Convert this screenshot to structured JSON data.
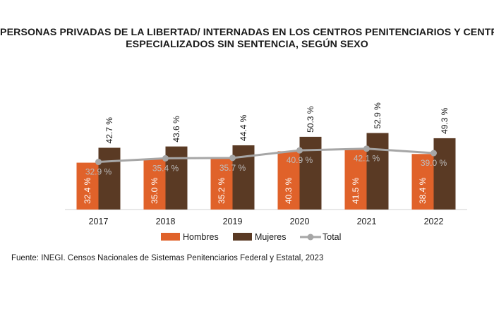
{
  "chart_data": {
    "type": "bar",
    "title_lines": [
      "Personas privadas de la libertad/ internadas en los centros penitenciarios y centros",
      "especializados sin sentencia, según sexo"
    ],
    "categories": [
      "2017",
      "2018",
      "2019",
      "2020",
      "2021",
      "2022"
    ],
    "series": [
      {
        "name": "Hombres",
        "values": [
          32.4,
          35.0,
          35.2,
          40.3,
          41.5,
          38.4
        ],
        "labels": [
          "32.4 %",
          "35.0 %",
          "35.2 %",
          "40.3 %",
          "41.5 %",
          "38.4 %"
        ],
        "color": "#e0622a"
      },
      {
        "name": "Mujeres",
        "values": [
          42.7,
          43.6,
          44.4,
          50.3,
          52.9,
          49.3
        ],
        "labels": [
          "42.7 %",
          "43.6 %",
          "44.4 %",
          "50.3 %",
          "52.9 %",
          "49.3 %"
        ],
        "color": "#5a3a24"
      },
      {
        "name": "Total",
        "type": "line",
        "values": [
          32.9,
          35.4,
          35.7,
          40.9,
          42.1,
          39.0
        ],
        "labels": [
          "32.9 %",
          "35.4 %",
          "35.7 %",
          "40.9 %",
          "42.1 %",
          "39.0 %"
        ],
        "color": "#a6a6a6"
      }
    ],
    "ylim": [
      0,
      55
    ],
    "grid": false,
    "legend": "bottom",
    "xlabel": "",
    "ylabel": ""
  },
  "source_text": "Fuente: INEGI. Censos Nacionales de Sistemas Penitenciarios Federal y Estatal, 2023"
}
